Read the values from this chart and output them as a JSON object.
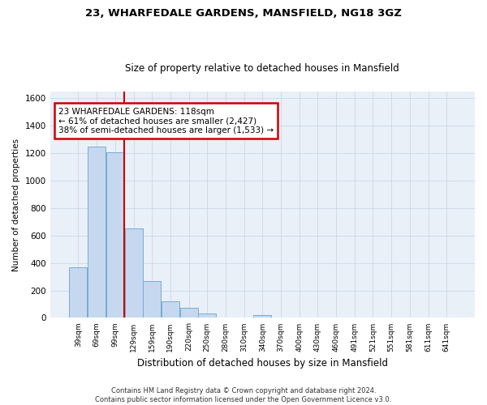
{
  "title1": "23, WHARFEDALE GARDENS, MANSFIELD, NG18 3GZ",
  "title2": "Size of property relative to detached houses in Mansfield",
  "xlabel": "Distribution of detached houses by size in Mansfield",
  "ylabel": "Number of detached properties",
  "footnote": "Contains HM Land Registry data © Crown copyright and database right 2024.\nContains public sector information licensed under the Open Government Licence v3.0.",
  "bin_labels": [
    "39sqm",
    "69sqm",
    "99sqm",
    "129sqm",
    "159sqm",
    "190sqm",
    "220sqm",
    "250sqm",
    "280sqm",
    "310sqm",
    "340sqm",
    "370sqm",
    "400sqm",
    "430sqm",
    "460sqm",
    "491sqm",
    "521sqm",
    "551sqm",
    "581sqm",
    "611sqm",
    "641sqm"
  ],
  "bar_heights": [
    370,
    1250,
    1210,
    650,
    270,
    120,
    75,
    35,
    0,
    0,
    20,
    0,
    0,
    0,
    0,
    0,
    0,
    0,
    0,
    0,
    0
  ],
  "bar_color": "#c5d8ef",
  "bar_edge_color": "#7aabcf",
  "property_line_color": "#cc0000",
  "annotation_text": "23 WHARFEDALE GARDENS: 118sqm\n← 61% of detached houses are smaller (2,427)\n38% of semi-detached houses are larger (1,533) →",
  "annotation_box_color": "#cc0000",
  "ylim": [
    0,
    1650
  ],
  "yticks": [
    0,
    200,
    400,
    600,
    800,
    1000,
    1200,
    1400,
    1600
  ],
  "grid_color": "#c8d8e8",
  "bg_color": "#eaf0f8"
}
